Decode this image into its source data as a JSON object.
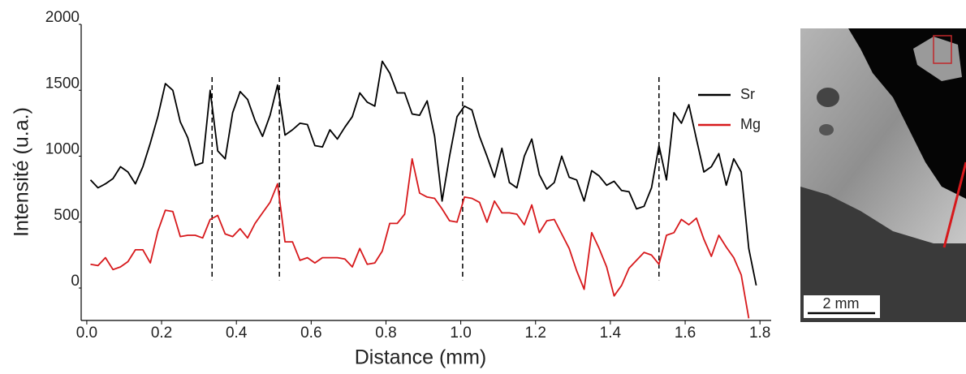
{
  "chart_data": {
    "type": "line",
    "xlabel": "Distance (mm)",
    "ylabel": "Intensité (u.a.)",
    "x": [
      0.01,
      0.03,
      0.05,
      0.07,
      0.09,
      0.11,
      0.13,
      0.15,
      0.17,
      0.19,
      0.21,
      0.23,
      0.25,
      0.27,
      0.29,
      0.31,
      0.33,
      0.35,
      0.37,
      0.39,
      0.41,
      0.43,
      0.45,
      0.47,
      0.49,
      0.51,
      0.53,
      0.55,
      0.57,
      0.59,
      0.61,
      0.63,
      0.65,
      0.67,
      0.69,
      0.71,
      0.73,
      0.75,
      0.77,
      0.79,
      0.81,
      0.83,
      0.85,
      0.87,
      0.89,
      0.91,
      0.93,
      0.95,
      0.97,
      0.99,
      1.01,
      1.03,
      1.05,
      1.07,
      1.09,
      1.11,
      1.13,
      1.15,
      1.17,
      1.19,
      1.21,
      1.23,
      1.25,
      1.27,
      1.29,
      1.31,
      1.33,
      1.35,
      1.37,
      1.39,
      1.41,
      1.43,
      1.45,
      1.47,
      1.49,
      1.51,
      1.53,
      1.55,
      1.57,
      1.59,
      1.61,
      1.63,
      1.65,
      1.67,
      1.69,
      1.71,
      1.73,
      1.75,
      1.77,
      1.79
    ],
    "series": [
      {
        "name": "Sr",
        "color": "#000000",
        "values": [
          820,
          760,
          790,
          830,
          920,
          880,
          790,
          920,
          1100,
          1300,
          1550,
          1500,
          1260,
          1140,
          930,
          950,
          1500,
          1040,
          980,
          1330,
          1490,
          1430,
          1270,
          1150,
          1310,
          1540,
          1160,
          1200,
          1250,
          1240,
          1080,
          1070,
          1200,
          1130,
          1220,
          1300,
          1480,
          1410,
          1380,
          1720,
          1630,
          1480,
          1480,
          1320,
          1310,
          1420,
          1150,
          660,
          1000,
          1300,
          1380,
          1350,
          1150,
          1000,
          840,
          1060,
          800,
          760,
          1000,
          1130,
          860,
          750,
          800,
          1000,
          840,
          820,
          660,
          890,
          850,
          780,
          810,
          740,
          730,
          600,
          620,
          760,
          1080,
          820,
          1330,
          1250,
          1390,
          1130,
          880,
          920,
          1020,
          780,
          980,
          880,
          300,
          20
        ]
      },
      {
        "name": "Mg",
        "color": "#d7191c",
        "values": [
          180,
          170,
          230,
          140,
          160,
          200,
          290,
          290,
          190,
          430,
          590,
          580,
          390,
          400,
          400,
          380,
          520,
          550,
          410,
          390,
          450,
          380,
          490,
          570,
          650,
          790,
          350,
          350,
          210,
          230,
          190,
          230,
          230,
          230,
          220,
          160,
          300,
          180,
          190,
          280,
          490,
          490,
          560,
          980,
          720,
          690,
          680,
          600,
          510,
          500,
          690,
          680,
          650,
          500,
          660,
          570,
          570,
          560,
          480,
          630,
          420,
          510,
          520,
          410,
          300,
          130,
          -10,
          420,
          300,
          160,
          -60,
          20,
          150,
          210,
          270,
          250,
          180,
          400,
          420,
          520,
          480,
          530,
          370,
          240,
          400,
          310,
          230,
          100,
          -230,
          null
        ]
      }
    ],
    "reference_lines": [
      0.335,
      0.515,
      1.005,
      1.53
    ],
    "xlim": [
      -0.015,
      1.83
    ],
    "xticks": [
      {
        "value": 0,
        "label": "0.0"
      },
      0.2,
      0.4,
      0.6,
      0.8,
      {
        "value": 1,
        "label": "1.0"
      },
      1.2,
      1.4,
      1.6,
      1.8
    ],
    "ylim": [
      -246,
      2000
    ],
    "yticks": [
      0,
      500,
      1000,
      1500,
      2000
    ],
    "grid": false,
    "legend": "upper right"
  },
  "inset": {
    "scale_bar": "2 mm"
  }
}
